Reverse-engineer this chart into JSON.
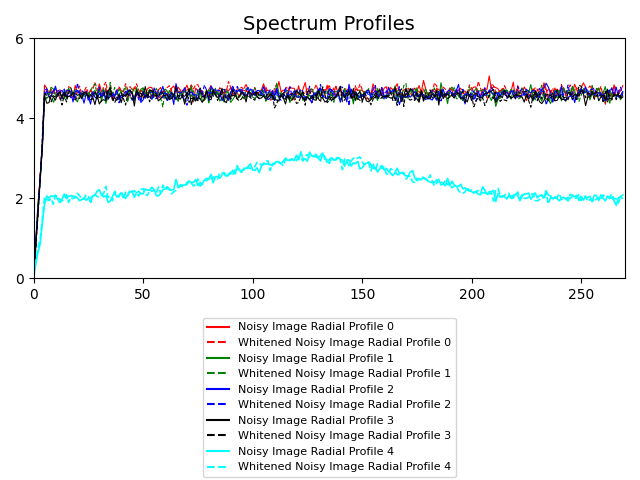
{
  "title": "Spectrum Profiles",
  "xlim": [
    0,
    270
  ],
  "ylim": [
    0,
    6
  ],
  "yticks": [
    0,
    2,
    4,
    6
  ],
  "xticks": [
    0,
    50,
    100,
    150,
    200,
    250
  ],
  "colors": [
    "red",
    "green",
    "blue",
    "black",
    "cyan"
  ],
  "legend_entries": [
    "Noisy Image Radial Profile 0",
    "Whitened Noisy Image Radial Profile 0",
    "Noisy Image Radial Profile 1",
    "Whitened Noisy Image Radial Profile 1",
    "Noisy Image Radial Profile 2",
    "Whitened Noisy Image Radial Profile 2",
    "Noisy Image Radial Profile 3",
    "Whitened Noisy Image Radial Profile 3",
    "Noisy Image Radial Profile 4",
    "Whitened Noisy Image Radial Profile 4"
  ],
  "n_points": 270,
  "seed": 42
}
